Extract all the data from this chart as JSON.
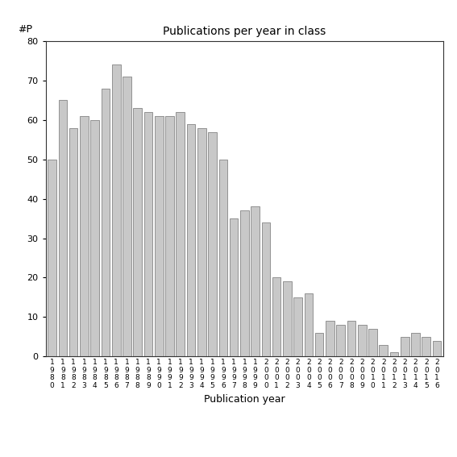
{
  "title": "Publications per year in class",
  "xlabel": "Publication year",
  "ylabel": "#P",
  "bar_color": "#c8c8c8",
  "bar_edgecolor": "#555555",
  "ylim": [
    0,
    80
  ],
  "yticks": [
    0,
    10,
    20,
    30,
    40,
    50,
    60,
    70,
    80
  ],
  "years": [
    1980,
    1981,
    1982,
    1983,
    1984,
    1985,
    1986,
    1987,
    1988,
    1989,
    1990,
    1991,
    1992,
    1993,
    1994,
    1995,
    1996,
    1997,
    1998,
    1999,
    2000,
    2001,
    2002,
    2003,
    2004,
    2005,
    2006,
    2007,
    2008,
    2009,
    2010,
    2011,
    2012,
    2013,
    2014,
    2015,
    2016
  ],
  "values": [
    50,
    65,
    58,
    61,
    60,
    68,
    74,
    71,
    63,
    62,
    61,
    61,
    62,
    59,
    58,
    57,
    50,
    35,
    37,
    38,
    34,
    20,
    19,
    15,
    16,
    6,
    9,
    8,
    9,
    8,
    7,
    3,
    1,
    5,
    6,
    5,
    4
  ]
}
